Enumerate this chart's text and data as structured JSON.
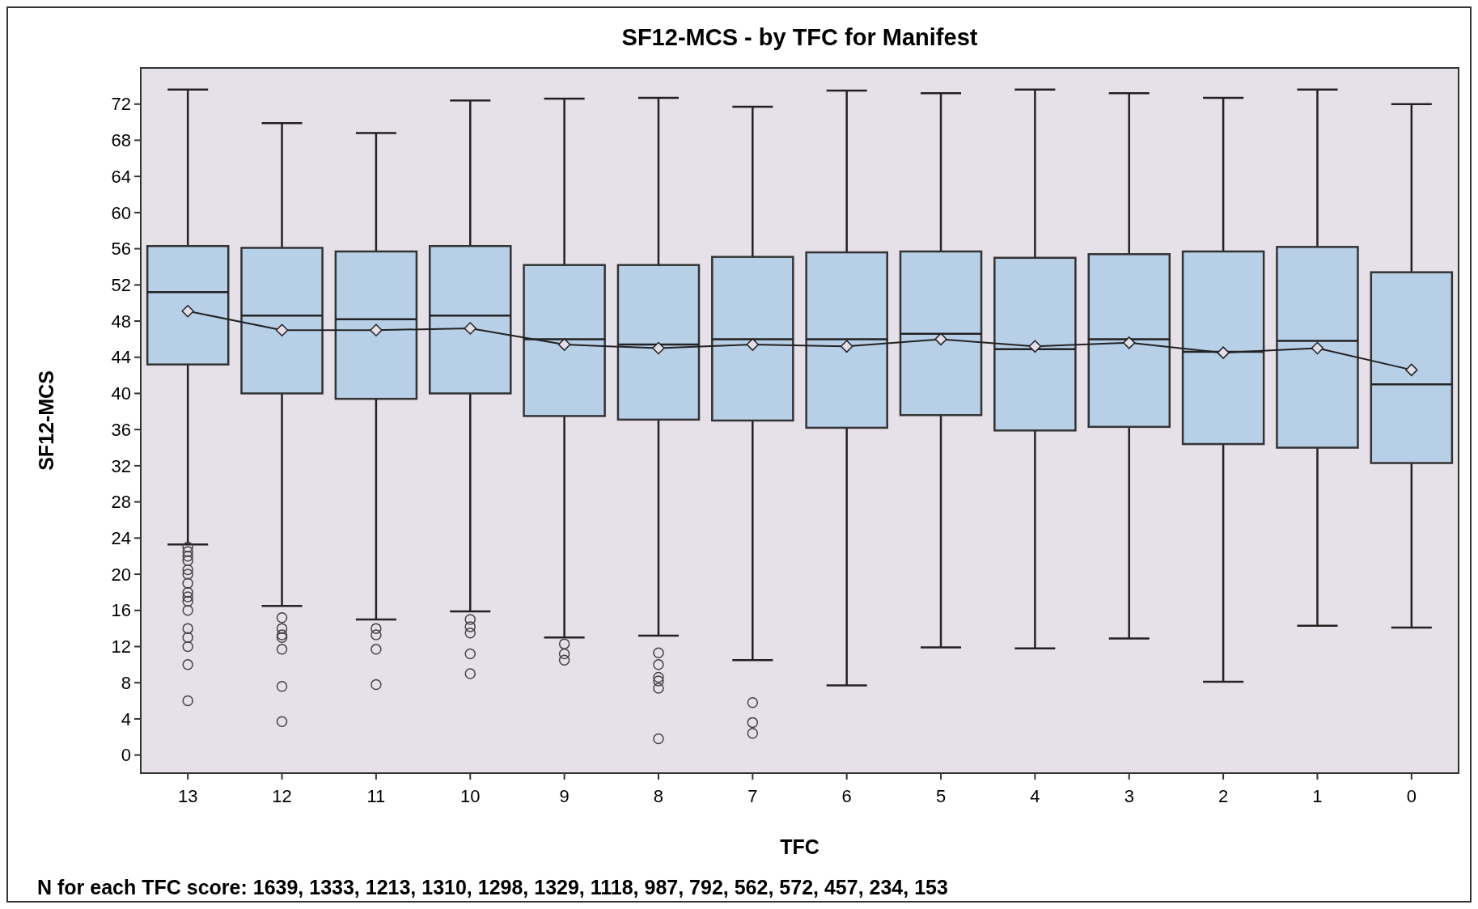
{
  "chart_data": {
    "type": "box",
    "title": "SF12-MCS - by TFC for Manifest",
    "xlabel": "TFC",
    "ylabel": "SF12-MCS",
    "categories": [
      "13",
      "12",
      "11",
      "10",
      "9",
      "8",
      "7",
      "6",
      "5",
      "4",
      "3",
      "2",
      "1",
      "0"
    ],
    "ylim": [
      -2,
      76
    ],
    "yticks": [
      0,
      4,
      8,
      12,
      16,
      20,
      24,
      28,
      32,
      36,
      40,
      44,
      48,
      52,
      56,
      60,
      64,
      68,
      72
    ],
    "grid": false,
    "annotations": [
      "N for each TFC score: 1639, 1333, 1213, 1310, 1298, 1329, 1118, 987, 792, 562, 572, 457, 234, 153"
    ],
    "series": [
      {
        "color": "#b8cfe8",
        "boxes": [
          {
            "low": 23.3,
            "q1": 43.2,
            "median": 51.2,
            "q3": 56.3,
            "high": 73.6,
            "outliers": [
              23,
              22.5,
              22,
              21.5,
              20.5,
              20,
              19,
              18,
              17.5,
              17,
              16,
              14,
              13,
              12,
              10,
              6
            ]
          },
          {
            "low": 16.5,
            "q1": 40,
            "median": 48.6,
            "q3": 56.1,
            "high": 69.9,
            "outliers": [
              15.2,
              14,
              13.3,
              13,
              11.7,
              7.6,
              3.7
            ]
          },
          {
            "low": 15,
            "q1": 39.4,
            "median": 48.2,
            "q3": 55.7,
            "high": 68.8,
            "outliers": [
              14,
              13.3,
              11.7,
              7.8
            ]
          },
          {
            "low": 15.9,
            "q1": 40,
            "median": 48.6,
            "q3": 56.3,
            "high": 72.4,
            "outliers": [
              15,
              14.2,
              13.5,
              11.2,
              9
            ]
          },
          {
            "low": 13,
            "q1": 37.5,
            "median": 46,
            "q3": 54.2,
            "high": 72.6,
            "outliers": [
              12.3,
              11.2,
              10.5
            ]
          },
          {
            "low": 13.2,
            "q1": 37.1,
            "median": 45.4,
            "q3": 54.2,
            "high": 72.7,
            "outliers": [
              11.3,
              10,
              8.6,
              8.2,
              7.4,
              1.8
            ]
          },
          {
            "low": 10.5,
            "q1": 37,
            "median": 46,
            "q3": 55.1,
            "high": 71.7,
            "outliers": [
              5.8,
              3.6,
              2.4
            ]
          },
          {
            "low": 7.7,
            "q1": 36.2,
            "median": 46,
            "q3": 55.6,
            "high": 73.5
          },
          {
            "low": 11.9,
            "q1": 37.6,
            "median": 46.6,
            "q3": 55.7,
            "high": 73.2
          },
          {
            "low": 11.8,
            "q1": 35.9,
            "median": 44.9,
            "q3": 55,
            "high": 73.6
          },
          {
            "low": 12.9,
            "q1": 36.3,
            "median": 46,
            "q3": 55.4,
            "high": 73.2
          },
          {
            "low": 8.1,
            "q1": 34.4,
            "median": 44.6,
            "q3": 55.7,
            "high": 72.7
          },
          {
            "low": 14.3,
            "q1": 34,
            "median": 45.8,
            "q3": 56.2,
            "high": 73.6
          },
          {
            "low": 14.1,
            "q1": 32.3,
            "median": 41,
            "q3": 53.4,
            "high": 72
          }
        ]
      },
      {
        "type": "line",
        "color": "#222222",
        "marker": "diamond",
        "values": [
          49.1,
          47,
          47,
          47.2,
          45.4,
          45,
          45.4,
          45.2,
          46,
          45.2,
          45.6,
          44.5,
          45,
          42.6
        ]
      }
    ]
  }
}
